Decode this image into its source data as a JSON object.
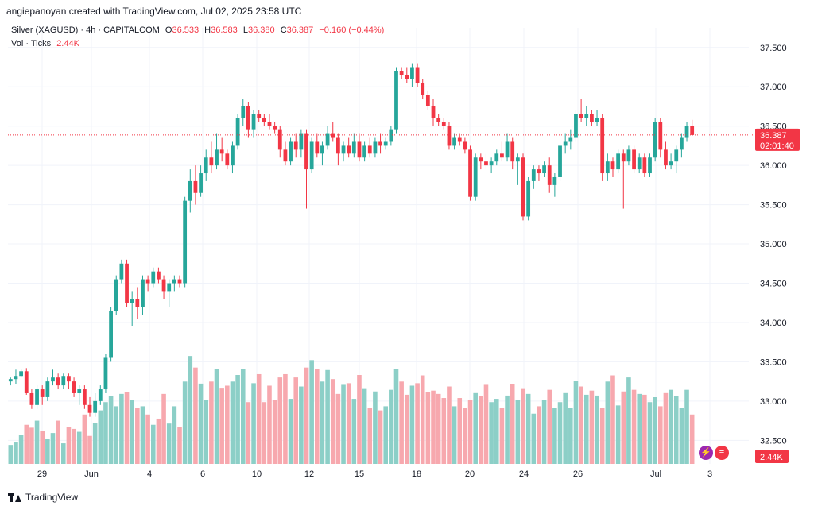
{
  "header": {
    "credit": "angiepanoyan created with TradingView.com, Jul 02, 2025 23:58 UTC",
    "symbol": "Silver (XAGUSD) · 4h · CAPITALCOM",
    "open_label": "O",
    "open": "36.533",
    "high_label": "H",
    "high": "36.583",
    "low_label": "L",
    "low": "36.380",
    "close_label": "C",
    "close": "36.387",
    "change": "−0.160 (−0.44%)",
    "vol_label": "Vol · Ticks",
    "vol_value": "2.44K"
  },
  "footer": {
    "brand": "TradingView"
  },
  "icons": [
    "lightning-icon",
    "us-flag-icon"
  ],
  "colors": {
    "up": "#26a69a",
    "down": "#f23645",
    "vol_up": "#8ccfc7",
    "vol_down": "#f7a8ae",
    "grid": "#f0f3fa",
    "text": "#131722"
  },
  "chart_data": {
    "type": "candlestick",
    "price_axis": {
      "ticks": [
        "37.500",
        "37.000",
        "36.500",
        "36.000",
        "35.500",
        "35.000",
        "34.500",
        "34.000",
        "33.500",
        "33.000",
        "32.500"
      ],
      "range": [
        32.2,
        37.7
      ]
    },
    "time_axis": {
      "ticks": [
        "29",
        "Jun",
        "4",
        "6",
        "10",
        "12",
        "15",
        "18",
        "20",
        "24",
        "26",
        "Jul",
        "3"
      ]
    },
    "last_price": {
      "value": "36.387",
      "countdown": "02:01:40"
    },
    "volume_label": "2.44K",
    "grid": true,
    "candles": [
      [
        33.25,
        33.3,
        33.2,
        33.28,
        46
      ],
      [
        33.28,
        33.4,
        33.22,
        33.32,
        52
      ],
      [
        33.32,
        33.4,
        33.3,
        33.38,
        70
      ],
      [
        33.38,
        33.42,
        33.08,
        33.1,
        95
      ],
      [
        33.1,
        33.15,
        32.9,
        32.95,
        88
      ],
      [
        32.95,
        33.2,
        32.9,
        33.15,
        105
      ],
      [
        33.15,
        33.2,
        32.95,
        33.05,
        80
      ],
      [
        33.05,
        33.3,
        33.0,
        33.25,
        60
      ],
      [
        33.25,
        33.4,
        33.2,
        33.3,
        75
      ],
      [
        33.3,
        33.35,
        33.15,
        33.2,
        105
      ],
      [
        33.2,
        33.35,
        33.15,
        33.32,
        50
      ],
      [
        33.32,
        33.35,
        33.15,
        33.25,
        90
      ],
      [
        33.25,
        33.3,
        33.05,
        33.1,
        85
      ],
      [
        33.1,
        33.2,
        32.95,
        33.15,
        78
      ],
      [
        33.15,
        33.2,
        32.9,
        32.95,
        120
      ],
      [
        32.95,
        33.05,
        32.8,
        32.85,
        68
      ],
      [
        32.85,
        33.1,
        32.8,
        33.0,
        100
      ],
      [
        33.0,
        33.2,
        32.95,
        33.15,
        130
      ],
      [
        33.15,
        33.6,
        33.1,
        33.55,
        150
      ],
      [
        33.55,
        34.2,
        33.5,
        34.15,
        165
      ],
      [
        34.15,
        34.6,
        34.1,
        34.55,
        140
      ],
      [
        34.55,
        34.8,
        34.5,
        34.75,
        170
      ],
      [
        34.75,
        34.8,
        34.2,
        34.25,
        175
      ],
      [
        34.25,
        34.4,
        33.95,
        34.3,
        155
      ],
      [
        34.3,
        34.45,
        34.05,
        34.2,
        135
      ],
      [
        34.2,
        34.6,
        34.1,
        34.55,
        140
      ],
      [
        34.55,
        34.6,
        34.4,
        34.5,
        120
      ],
      [
        34.5,
        34.7,
        34.45,
        34.65,
        95
      ],
      [
        34.65,
        34.7,
        34.5,
        34.55,
        110
      ],
      [
        34.55,
        34.6,
        34.3,
        34.4,
        170
      ],
      [
        34.4,
        34.55,
        34.2,
        34.5,
        98
      ],
      [
        34.5,
        34.6,
        34.4,
        34.55,
        140
      ],
      [
        34.55,
        34.6,
        34.45,
        34.5,
        90
      ],
      [
        34.5,
        35.6,
        34.45,
        35.55,
        200
      ],
      [
        35.55,
        35.95,
        35.4,
        35.8,
        262
      ],
      [
        35.8,
        36.0,
        35.5,
        35.65,
        234
      ],
      [
        35.65,
        36.0,
        35.6,
        35.9,
        195
      ],
      [
        35.9,
        36.2,
        35.8,
        36.1,
        155
      ],
      [
        36.1,
        36.3,
        35.9,
        36.0,
        200
      ],
      [
        36.0,
        36.4,
        35.95,
        36.2,
        230
      ],
      [
        36.2,
        36.35,
        36.05,
        36.15,
        183
      ],
      [
        36.15,
        36.2,
        35.95,
        36.0,
        190
      ],
      [
        36.0,
        36.3,
        35.9,
        36.25,
        200
      ],
      [
        36.25,
        36.65,
        36.2,
        36.6,
        216
      ],
      [
        36.6,
        36.85,
        36.5,
        36.75,
        230
      ],
      [
        36.75,
        36.8,
        36.35,
        36.45,
        150
      ],
      [
        36.45,
        36.7,
        36.35,
        36.65,
        196
      ],
      [
        36.65,
        36.7,
        36.55,
        36.6,
        218
      ],
      [
        36.6,
        36.65,
        36.5,
        36.55,
        150
      ],
      [
        36.55,
        36.65,
        36.45,
        36.5,
        190
      ],
      [
        36.5,
        36.55,
        36.4,
        36.45,
        156
      ],
      [
        36.45,
        36.5,
        36.1,
        36.2,
        210
      ],
      [
        36.2,
        36.3,
        36.0,
        36.05,
        218
      ],
      [
        36.05,
        36.35,
        36.0,
        36.3,
        158
      ],
      [
        36.3,
        36.4,
        36.1,
        36.2,
        210
      ],
      [
        36.2,
        36.45,
        36.1,
        36.4,
        188
      ],
      [
        36.4,
        36.45,
        35.45,
        35.95,
        234
      ],
      [
        35.95,
        36.35,
        35.9,
        36.3,
        252
      ],
      [
        36.3,
        36.4,
        36.1,
        36.15,
        230
      ],
      [
        36.15,
        36.3,
        36.0,
        36.25,
        200
      ],
      [
        36.25,
        36.5,
        36.2,
        36.4,
        228
      ],
      [
        36.4,
        36.55,
        36.3,
        36.35,
        206
      ],
      [
        36.35,
        36.4,
        36.0,
        36.15,
        170
      ],
      [
        36.15,
        36.3,
        36.05,
        36.25,
        192
      ],
      [
        36.25,
        36.35,
        36.1,
        36.15,
        196
      ],
      [
        36.15,
        36.4,
        36.1,
        36.3,
        158
      ],
      [
        36.3,
        36.4,
        36.05,
        36.1,
        216
      ],
      [
        36.1,
        36.3,
        36.05,
        36.25,
        182
      ],
      [
        36.25,
        36.35,
        36.1,
        36.15,
        136
      ],
      [
        36.15,
        36.35,
        36.1,
        36.3,
        176
      ],
      [
        36.3,
        36.4,
        36.15,
        36.25,
        130
      ],
      [
        36.25,
        36.35,
        36.2,
        36.3,
        140
      ],
      [
        36.3,
        36.5,
        36.25,
        36.45,
        180
      ],
      [
        36.45,
        37.25,
        36.4,
        37.2,
        230
      ],
      [
        37.2,
        37.25,
        37.1,
        37.15,
        200
      ],
      [
        37.15,
        37.25,
        37.05,
        37.1,
        168
      ],
      [
        37.1,
        37.3,
        37.0,
        37.25,
        190
      ],
      [
        37.25,
        37.3,
        37.0,
        37.05,
        196
      ],
      [
        37.05,
        37.1,
        36.85,
        36.9,
        215
      ],
      [
        36.9,
        36.95,
        36.7,
        36.75,
        174
      ],
      [
        36.75,
        36.85,
        36.5,
        36.6,
        178
      ],
      [
        36.6,
        36.65,
        36.5,
        36.55,
        170
      ],
      [
        36.55,
        36.6,
        36.45,
        36.5,
        160
      ],
      [
        36.5,
        36.55,
        36.2,
        36.25,
        188
      ],
      [
        36.25,
        36.4,
        36.2,
        36.35,
        140
      ],
      [
        36.35,
        36.4,
        36.25,
        36.3,
        160
      ],
      [
        36.3,
        36.35,
        36.15,
        36.2,
        136
      ],
      [
        36.2,
        36.25,
        35.55,
        35.6,
        155
      ],
      [
        35.6,
        36.15,
        35.55,
        36.1,
        172
      ],
      [
        36.1,
        36.15,
        35.95,
        36.05,
        165
      ],
      [
        36.05,
        36.15,
        35.95,
        36.0,
        192
      ],
      [
        36.0,
        36.1,
        35.9,
        36.05,
        150
      ],
      [
        36.05,
        36.2,
        36.0,
        36.15,
        158
      ],
      [
        36.15,
        36.3,
        36.05,
        36.1,
        135
      ],
      [
        36.1,
        36.4,
        36.05,
        36.3,
        166
      ],
      [
        36.3,
        36.35,
        35.95,
        36.05,
        194
      ],
      [
        36.05,
        36.15,
        35.75,
        36.1,
        155
      ],
      [
        36.1,
        36.15,
        35.3,
        35.35,
        182
      ],
      [
        35.35,
        35.85,
        35.3,
        35.8,
        170
      ],
      [
        35.8,
        36.0,
        35.7,
        35.95,
        122
      ],
      [
        35.95,
        36.0,
        35.8,
        35.9,
        140
      ],
      [
        35.9,
        36.05,
        35.85,
        36.0,
        155
      ],
      [
        36.0,
        36.1,
        35.65,
        35.75,
        180
      ],
      [
        35.75,
        35.9,
        35.6,
        35.85,
        135
      ],
      [
        35.85,
        36.3,
        35.8,
        36.25,
        150
      ],
      [
        36.25,
        36.4,
        36.15,
        36.3,
        172
      ],
      [
        36.3,
        36.45,
        36.2,
        36.35,
        135
      ],
      [
        36.35,
        36.7,
        36.3,
        36.65,
        202
      ],
      [
        36.65,
        36.85,
        36.55,
        36.6,
        188
      ],
      [
        36.6,
        36.75,
        36.5,
        36.65,
        168
      ],
      [
        36.65,
        36.7,
        36.5,
        36.55,
        178
      ],
      [
        36.55,
        36.7,
        36.5,
        36.6,
        166
      ],
      [
        36.6,
        36.65,
        35.8,
        35.9,
        136
      ],
      [
        35.9,
        36.15,
        35.8,
        36.05,
        200
      ],
      [
        36.05,
        36.1,
        35.85,
        35.95,
        215
      ],
      [
        35.95,
        36.2,
        35.9,
        36.15,
        142
      ],
      [
        36.15,
        36.2,
        35.45,
        36.05,
        176
      ],
      [
        36.05,
        36.25,
        36.0,
        36.2,
        210
      ],
      [
        36.2,
        36.25,
        35.9,
        35.95,
        180
      ],
      [
        35.95,
        36.15,
        35.9,
        36.1,
        170
      ],
      [
        36.1,
        36.15,
        35.85,
        35.9,
        168
      ],
      [
        35.9,
        36.15,
        35.85,
        36.1,
        150
      ],
      [
        36.1,
        36.6,
        36.05,
        36.55,
        162
      ],
      [
        36.55,
        36.6,
        36.1,
        36.2,
        140
      ],
      [
        36.2,
        36.3,
        35.95,
        36.0,
        172
      ],
      [
        36.0,
        36.15,
        35.95,
        36.05,
        180
      ],
      [
        36.05,
        36.25,
        35.9,
        36.2,
        165
      ],
      [
        36.2,
        36.4,
        36.1,
        36.35,
        136
      ],
      [
        36.35,
        36.55,
        36.3,
        36.5,
        180
      ],
      [
        36.5,
        36.58,
        36.38,
        36.387,
        120
      ]
    ]
  }
}
